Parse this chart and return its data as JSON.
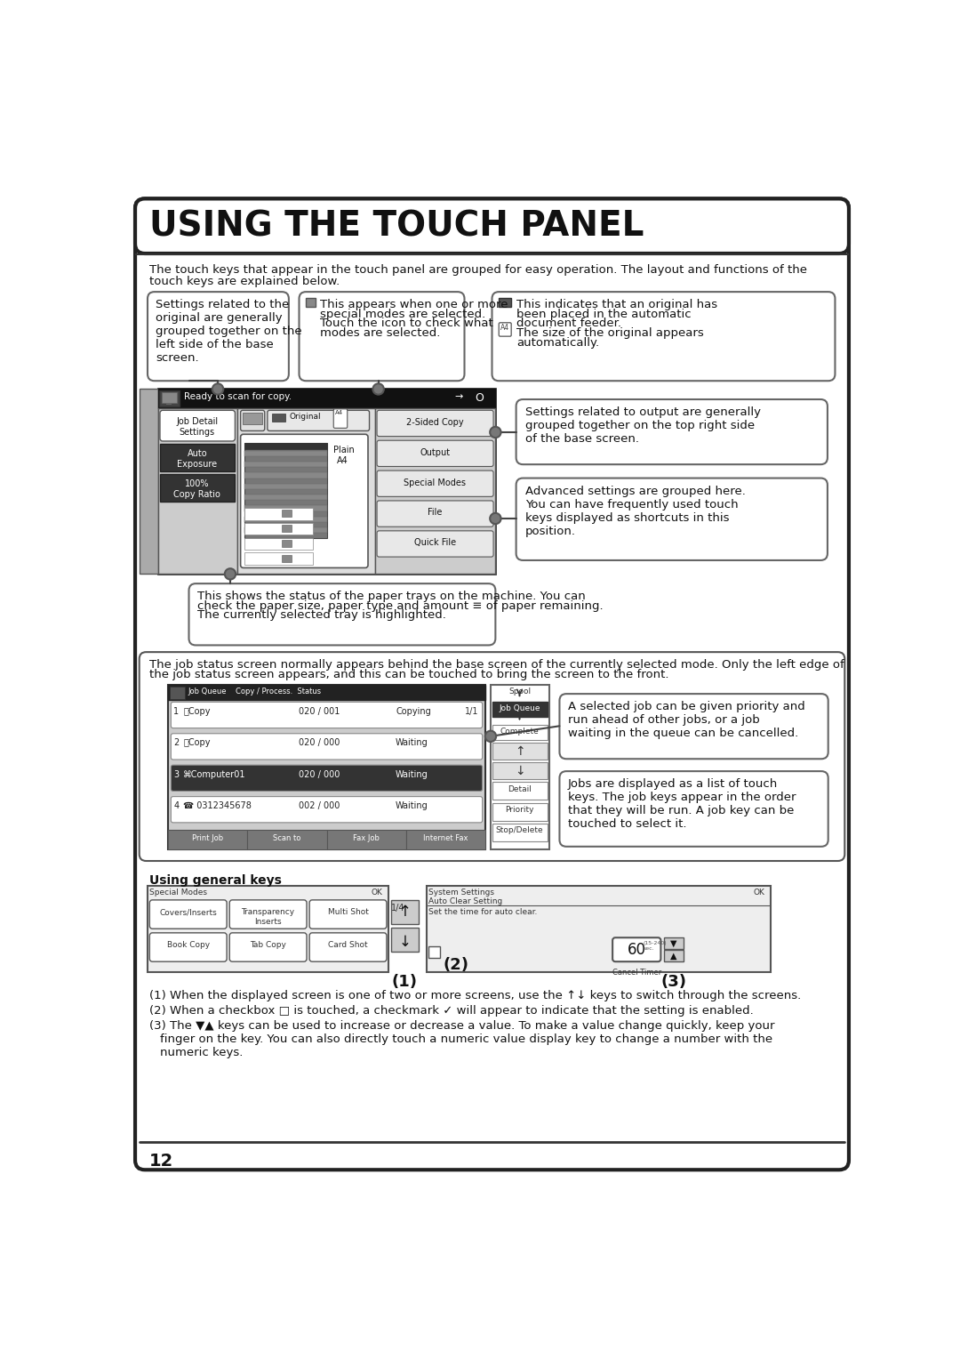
{
  "title": "USING THE TOUCH PANEL",
  "page_number": "12",
  "intro_text1": "The touch keys that appear in the touch panel are grouped for easy operation. The layout and functions of the",
  "intro_text2": "touch keys are explained below.",
  "callout1": "Settings related to the\noriginal are generally\ngrouped together on the\nleft side of the base\nscreen.",
  "callout2_line1": "This appears when one or more",
  "callout2_line2": "special modes are selected.",
  "callout2_line3": "Touch the icon to check what",
  "callout2_line4": "modes are selected.",
  "callout3_line1": "This indicates that an original has",
  "callout3_line2": "been placed in the automatic",
  "callout3_line3": "document feeder.",
  "callout3_line4": "The size of the original appears",
  "callout3_line5": "automatically.",
  "callout4": "Settings related to output are generally\ngrouped together on the top right side\nof the base screen.",
  "callout5": "Advanced settings are grouped here.\nYou can have frequently used touch\nkeys displayed as shortcuts in this\nposition.",
  "callout6_line1": "This shows the status of the paper trays on the machine. You can",
  "callout6_line2": "check the paper size, paper type and amount ≡ of paper remaining.",
  "callout6_line3": "The currently selected tray is highlighted.",
  "job_text1": "The job status screen normally appears behind the base screen of the currently selected mode. Only the left edge of",
  "job_text2": "the job status screen appears, and this can be touched to bring the screen to the front.",
  "job_callout1": "A selected job can be given priority and\nrun ahead of other jobs, or a job\nwaiting in the queue can be cancelled.",
  "job_callout2": "Jobs are displayed as a list of touch\nkeys. The job keys appear in the order\nthat they will be run. A job key can be\ntouched to select it.",
  "gen_keys_title": "Using general keys",
  "note1a": "(1) When the displayed screen is one of two or more screens, use the ",
  "note1b": " keys to switch through the screens.",
  "note2a": "(2) When a checkbox ",
  "note2b": " is touched, a checkmark ",
  "note2c": " will appear to indicate that the setting is enabled.",
  "note3a": "(3) The ",
  "note3b": " keys can be used to increase or decrease a value. To make a value change quickly, keep your",
  "note3c": "    finger on the key. You can also directly touch a numeric value display key to change a number with the",
  "note3d": "    numeric keys."
}
